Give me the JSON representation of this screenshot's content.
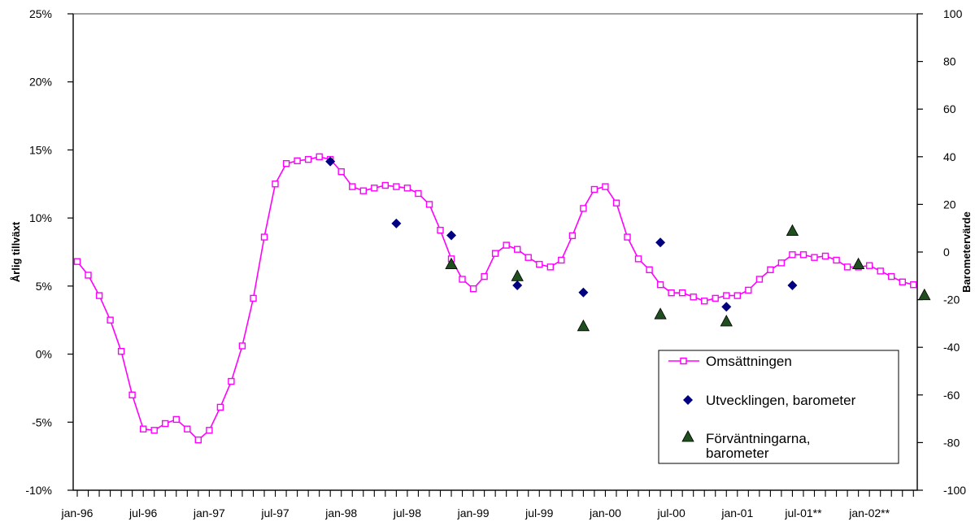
{
  "chart_data": {
    "type": "line",
    "title": "",
    "ylabel_left": "Årlig tillväxt",
    "ylabel_right": "Barometervärde",
    "x_tick_labels": [
      "jan-96",
      "jul-96",
      "jan-97",
      "jul-97",
      "jan-98",
      "jul-98",
      "jan-99",
      "jul-99",
      "jan-00",
      "jul-00",
      "jan-01",
      "jul-01**",
      "jan-02**"
    ],
    "y_left_ticks": [
      "-10%",
      "-5%",
      "0%",
      "5%",
      "10%",
      "15%",
      "20%",
      "25%"
    ],
    "y_left_lim": [
      -10,
      25
    ],
    "y_right_ticks": [
      "-100",
      "-80",
      "-60",
      "-40",
      "-20",
      "0",
      "20",
      "40",
      "60",
      "80",
      "100"
    ],
    "y_right_lim": [
      -100,
      100
    ],
    "grid": false,
    "legend_position": "bottom-right",
    "colors": {
      "omsattning": "#ff00ff",
      "utveckling": "#000080",
      "forvantning": "#1f4f1f"
    },
    "series": [
      {
        "name": "Omsättningen",
        "axis": "left",
        "style": "line-with-square-markers",
        "start": "jan-96",
        "values": [
          6.8,
          5.8,
          4.3,
          2.5,
          0.2,
          -3.0,
          -5.5,
          -5.6,
          -5.1,
          -4.8,
          -5.5,
          -6.3,
          -5.6,
          -3.9,
          -2.0,
          0.6,
          4.1,
          8.6,
          12.5,
          14.0,
          14.2,
          14.3,
          14.5,
          14.3,
          13.4,
          12.3,
          12.0,
          12.2,
          12.4,
          12.3,
          12.2,
          11.8,
          11.0,
          9.1,
          7.0,
          5.5,
          4.8,
          5.7,
          7.4,
          8.0,
          7.7,
          7.1,
          6.6,
          6.4,
          6.9,
          8.7,
          10.7,
          12.1,
          12.3,
          11.1,
          8.6,
          7.0,
          6.2,
          5.1,
          4.5,
          4.5,
          4.2,
          3.9,
          4.1,
          4.3,
          4.3,
          4.7,
          5.5,
          6.2,
          6.7,
          7.3,
          7.3,
          7.1,
          7.2,
          6.9,
          6.4,
          6.4,
          6.5,
          6.1,
          5.7,
          5.3,
          5.1
        ]
      },
      {
        "name": "Utvecklingen, barometer",
        "axis": "right",
        "style": "diamond-markers",
        "points": [
          {
            "month": "dec-97",
            "value": 38
          },
          {
            "month": "jun-98",
            "value": 12
          },
          {
            "month": "nov-98",
            "value": 7
          },
          {
            "month": "may-99",
            "value": -14
          },
          {
            "month": "nov-99",
            "value": -17
          },
          {
            "month": "jun-00",
            "value": 4
          },
          {
            "month": "dec-00",
            "value": -23
          },
          {
            "month": "jun-01",
            "value": -14
          }
        ]
      },
      {
        "name": "Förväntningarna, barometer",
        "axis": "right",
        "style": "triangle-markers",
        "points": [
          {
            "month": "nov-98",
            "value": -5
          },
          {
            "month": "may-99",
            "value": -10
          },
          {
            "month": "nov-99",
            "value": -31
          },
          {
            "month": "jun-00",
            "value": -26
          },
          {
            "month": "dec-00",
            "value": -29
          },
          {
            "month": "jun-01",
            "value": 9
          },
          {
            "month": "dec-01",
            "value": -5
          },
          {
            "month": "jun-02",
            "value": -18
          }
        ]
      }
    ]
  }
}
